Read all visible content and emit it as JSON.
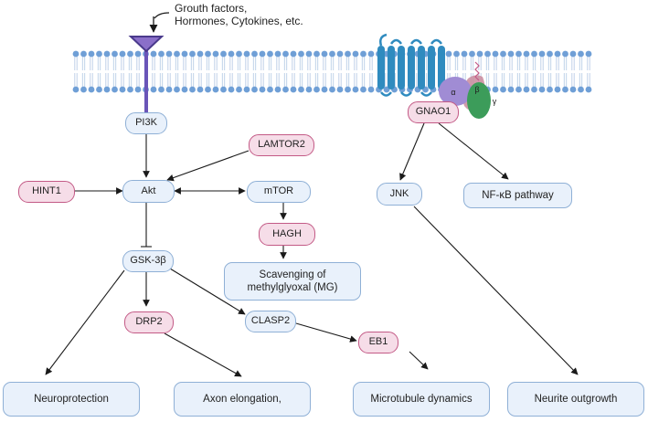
{
  "ligand_label": [
    "Grouth factors,",
    "Hormones, Cytokines, etc."
  ],
  "nodes": {
    "pi3k": "PI3K",
    "lamtor2": "LAMTOR2",
    "hint1": "HINT1",
    "akt": "Akt",
    "mtor": "mTOR",
    "hagh": "HAGH",
    "mg": [
      "Scavenging of",
      "methylglyoxal (MG)"
    ],
    "gsk3b": "GSK-3β",
    "drp2": "DRP2",
    "clasp2": "CLASP2",
    "eb1": "EB1",
    "gnao1": "GNAO1",
    "jnk": "JNK",
    "nfkb": "NF-κB pathway"
  },
  "outcomes": {
    "neuroprotection": "Neuroprotection",
    "axon": "Axon elongation,",
    "microtubule": "Microtubule dynamics",
    "neurite": "Neurite outgrowth"
  },
  "g_protein_subunits": {
    "alpha": "α",
    "beta": "β",
    "gamma": "γ"
  },
  "colors": {
    "membrane_head": "#6f9fd6",
    "membrane_tail": "#b9cde6",
    "receptor": "#2f8bbf",
    "rtk": "#8a6fc9",
    "node_blue_fill": "#e9f1fb",
    "node_blue_border": "#8fb0d6",
    "node_pink_fill": "#f6dde8",
    "node_pink_border": "#c35a86",
    "arrow": "#1a1a1a"
  }
}
